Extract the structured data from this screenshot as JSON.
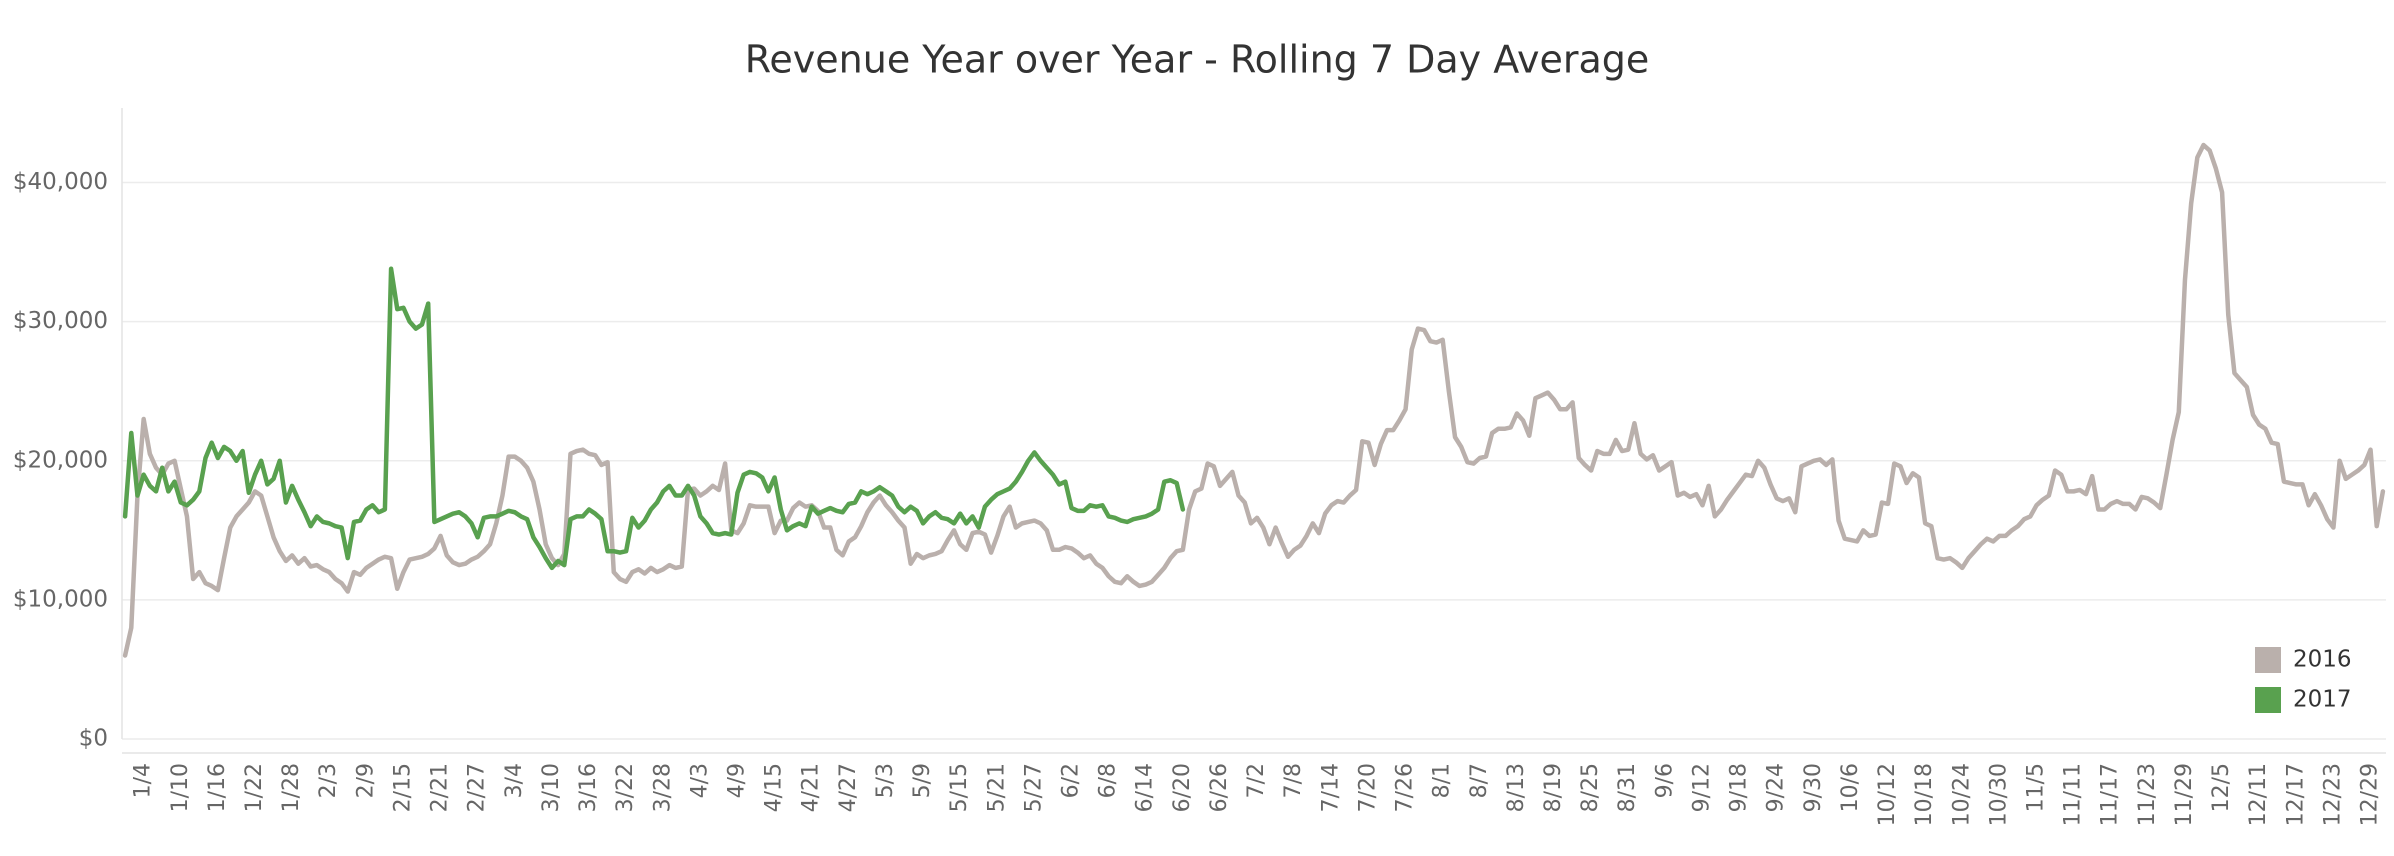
{
  "chart_data": {
    "type": "line",
    "title": "Revenue Year over Year - Rolling 7 Day Average",
    "categories": [
      null,
      null,
      null,
      "1/4",
      null,
      null,
      null,
      null,
      null,
      "1/10",
      null,
      null,
      null,
      null,
      null,
      "1/16",
      null,
      null,
      null,
      null,
      null,
      "1/22",
      null,
      null,
      null,
      null,
      null,
      "1/28",
      null,
      null,
      null,
      null,
      null,
      "2/3",
      null,
      null,
      null,
      null,
      null,
      "2/9",
      null,
      null,
      null,
      null,
      null,
      "2/15",
      null,
      null,
      null,
      null,
      null,
      "2/21",
      null,
      null,
      null,
      null,
      null,
      "2/27",
      null,
      null,
      null,
      null,
      null,
      "3/4",
      null,
      null,
      null,
      null,
      null,
      "3/10",
      null,
      null,
      null,
      null,
      null,
      "3/16",
      null,
      null,
      null,
      null,
      null,
      "3/22",
      null,
      null,
      null,
      null,
      null,
      "3/28",
      null,
      null,
      null,
      null,
      null,
      "4/3",
      null,
      null,
      null,
      null,
      null,
      "4/9",
      null,
      null,
      null,
      null,
      null,
      "4/15",
      null,
      null,
      null,
      null,
      null,
      "4/21",
      null,
      null,
      null,
      null,
      null,
      "4/27",
      null,
      null,
      null,
      null,
      null,
      "5/3",
      null,
      null,
      null,
      null,
      null,
      "5/9",
      null,
      null,
      null,
      null,
      null,
      "5/15",
      null,
      null,
      null,
      null,
      null,
      "5/21",
      null,
      null,
      null,
      null,
      null,
      "5/27",
      null,
      null,
      null,
      null,
      null,
      "6/2",
      null,
      null,
      null,
      null,
      null,
      "6/8",
      null,
      null,
      null,
      null,
      null,
      "6/14",
      null,
      null,
      null,
      null,
      null,
      "6/20",
      null,
      null,
      null,
      null,
      null,
      "6/26",
      null,
      null,
      null,
      null,
      null,
      "7/2",
      null,
      null,
      null,
      null,
      null,
      "7/8",
      null,
      null,
      null,
      null,
      null,
      "7/14",
      null,
      null,
      null,
      null,
      null,
      "7/20",
      null,
      null,
      null,
      null,
      null,
      "7/26",
      null,
      null,
      null,
      null,
      null,
      "8/1",
      null,
      null,
      null,
      null,
      null,
      "8/7",
      null,
      null,
      null,
      null,
      null,
      "8/13",
      null,
      null,
      null,
      null,
      null,
      "8/19",
      null,
      null,
      null,
      null,
      null,
      "8/25",
      null,
      null,
      null,
      null,
      null,
      "8/31",
      null,
      null,
      null,
      null,
      null,
      "9/6",
      null,
      null,
      null,
      null,
      null,
      "9/12",
      null,
      null,
      null,
      null,
      null,
      "9/18",
      null,
      null,
      null,
      null,
      null,
      "9/24",
      null,
      null,
      null,
      null,
      null,
      "9/30",
      null,
      null,
      null,
      null,
      null,
      "10/6",
      null,
      null,
      null,
      null,
      null,
      "10/12",
      null,
      null,
      null,
      null,
      null,
      "10/18",
      null,
      null,
      null,
      null,
      null,
      "10/24",
      null,
      null,
      null,
      null,
      null,
      "10/30",
      null,
      null,
      null,
      null,
      null,
      "11/5",
      null,
      null,
      null,
      null,
      null,
      "11/11",
      null,
      null,
      null,
      null,
      null,
      "11/17",
      null,
      null,
      null,
      null,
      null,
      "11/23",
      null,
      null,
      null,
      null,
      null,
      "11/29",
      null,
      null,
      null,
      null,
      null,
      "12/5",
      null,
      null,
      null,
      null,
      null,
      "12/11",
      null,
      null,
      null,
      null,
      null,
      "12/17",
      null,
      null,
      null,
      null,
      null,
      "12/23",
      null,
      null,
      null,
      null,
      null,
      "12/29",
      null,
      null
    ],
    "series": [
      {
        "name": "2016",
        "color": "#bab0ac",
        "values": [
          6000,
          8000,
          17500,
          23000,
          20500,
          19500,
          19000,
          19800,
          20000,
          18000,
          16000,
          11500,
          12000,
          11200,
          11000,
          10700,
          13000,
          15200,
          16000,
          16500,
          17000,
          17800,
          17500,
          16000,
          14500,
          13500,
          12800,
          13200,
          12600,
          13000,
          12400,
          12500,
          12200,
          12000,
          11500,
          11200,
          10600,
          12000,
          11800,
          12300,
          12600,
          12900,
          13100,
          13000,
          10800,
          12000,
          12900,
          13000,
          13100,
          13300,
          13700,
          14600,
          13200,
          12700,
          12500,
          12600,
          12900,
          13100,
          13500,
          14000,
          15500,
          17500,
          20300,
          20300,
          20000,
          19500,
          18500,
          16500,
          14000,
          13000,
          12500,
          13300,
          20500,
          20700,
          20800,
          20500,
          20400,
          19700,
          19900,
          12000,
          11500,
          11300,
          12000,
          12200,
          11900,
          12300,
          12000,
          12200,
          12500,
          12300,
          12400,
          17900,
          18000,
          17500,
          17800,
          18200,
          17900,
          19800,
          15000,
          14800,
          15500,
          16800,
          16700,
          16700,
          16700,
          14800,
          15700,
          15700,
          16600,
          17000,
          16700,
          16800,
          16400,
          15200,
          15200,
          13600,
          13200,
          14200,
          14500,
          15300,
          16300,
          17000,
          17500,
          16800,
          16300,
          15700,
          15200,
          12600,
          13300,
          13000,
          13200,
          13300,
          13500,
          14300,
          15000,
          14000,
          13600,
          14800,
          14900,
          14700,
          13400,
          14600,
          16000,
          16700,
          15200,
          15500,
          15600,
          15700,
          15500,
          15000,
          13600,
          13600,
          13800,
          13700,
          13400,
          13000,
          13200,
          12600,
          12300,
          11700,
          11300,
          11200,
          11700,
          11300,
          11000,
          11100,
          11300,
          11800,
          12300,
          13000,
          13500,
          13600,
          16500,
          17800,
          18000,
          19800,
          19600,
          18200,
          18700,
          19200,
          17500,
          17000,
          15500,
          15900,
          15200,
          14000,
          15200,
          14100,
          13100,
          13600,
          13900,
          14600,
          15500,
          14800,
          16200,
          16800,
          17100,
          17000,
          17500,
          17900,
          21400,
          21300,
          19700,
          21200,
          22200,
          22200,
          22900,
          23700,
          28000,
          29500,
          29400,
          28600,
          28500,
          28700,
          25000,
          21700,
          21000,
          19900,
          19800,
          20200,
          20300,
          22000,
          22300,
          22300,
          22400,
          23400,
          22900,
          21800,
          24500,
          24700,
          24900,
          24400,
          23700,
          23700,
          24200,
          20200,
          19700,
          19300,
          20700,
          20500,
          20500,
          21500,
          20700,
          20800,
          22700,
          20500,
          20100,
          20400,
          19300,
          19600,
          19900,
          17500,
          17700,
          17400,
          17600,
          16800,
          18200,
          16000,
          16500,
          17200,
          17800,
          18400,
          19000,
          18900,
          20000,
          19500,
          18300,
          17300,
          17100,
          17300,
          16300,
          19600,
          19800,
          20000,
          20100,
          19700,
          20100,
          15700,
          14400,
          14300,
          14200,
          15000,
          14600,
          14700,
          17000,
          16900,
          19800,
          19600,
          18400,
          19100,
          18800,
          15500,
          15300,
          13000,
          12900,
          13000,
          12700,
          12300,
          13000,
          13500,
          14000,
          14400,
          14200,
          14600,
          14600,
          15000,
          15300,
          15800,
          16000,
          16800,
          17200,
          17500,
          19300,
          19000,
          17800,
          17800,
          17900,
          17600,
          18900,
          16500,
          16500,
          16900,
          17100,
          16900,
          16900,
          16500,
          17400,
          17300,
          17000,
          16600,
          19000,
          21500,
          23500,
          33000,
          38500,
          41800,
          42700,
          42300,
          41000,
          39300,
          30500,
          26300,
          25800,
          25300,
          23300,
          22600,
          22300,
          21300,
          21200,
          18500,
          18400,
          18300,
          18300,
          16800,
          17600,
          16800,
          15800,
          15200,
          20000,
          18700,
          19000,
          19300,
          19700,
          20800,
          15300,
          17800
        ]
      },
      {
        "name": "2017",
        "color": "#59a14f",
        "values": [
          16000,
          22000,
          17500,
          19000,
          18200,
          17800,
          19500,
          17800,
          18500,
          17000,
          16800,
          17200,
          17800,
          20200,
          21300,
          20200,
          21000,
          20700,
          20000,
          20700,
          17700,
          19000,
          20000,
          18300,
          18700,
          20000,
          17000,
          18200,
          17200,
          16300,
          15300,
          16000,
          15600,
          15500,
          15300,
          15200,
          13000,
          15600,
          15700,
          16500,
          16800,
          16300,
          16500,
          33800,
          30900,
          31000,
          30000,
          29500,
          29800,
          31300,
          15600,
          15800,
          16000,
          16200,
          16300,
          16000,
          15500,
          14500,
          15900,
          16000,
          16000,
          16200,
          16400,
          16300,
          16000,
          15800,
          14500,
          13800,
          13000,
          12300,
          12800,
          12500,
          15800,
          16000,
          16000,
          16500,
          16200,
          15800,
          13500,
          13500,
          13400,
          13500,
          15900,
          15200,
          15700,
          16500,
          17000,
          17800,
          18200,
          17500,
          17500,
          18200,
          17500,
          16000,
          15500,
          14800,
          14700,
          14800,
          14700,
          17700,
          19000,
          19200,
          19100,
          18800,
          17800,
          18800,
          16500,
          15000,
          15300,
          15500,
          15300,
          16700,
          16200,
          16400,
          16600,
          16400,
          16300,
          16900,
          17000,
          17800,
          17600,
          17800,
          18100,
          17800,
          17500,
          16700,
          16300,
          16700,
          16400,
          15500,
          16000,
          16300,
          15900,
          15800,
          15500,
          16200,
          15500,
          16000,
          15200,
          16700,
          17200,
          17600,
          17800,
          18000,
          18500,
          19200,
          20000,
          20600,
          20000,
          19500,
          19000,
          18300,
          18500,
          16600,
          16400,
          16400,
          16800,
          16700,
          16800,
          16000,
          15900,
          15700,
          15600,
          15800,
          15900,
          16000,
          16200,
          16500,
          18500,
          18600,
          18400,
          16500,
          null,
          null,
          null,
          null,
          null,
          null,
          null,
          null,
          null,
          null,
          null,
          null,
          null,
          null,
          null,
          null,
          null,
          null,
          null,
          null,
          null,
          null,
          null,
          null,
          null,
          null,
          null,
          null,
          null,
          null,
          null,
          null,
          null,
          null,
          null,
          null,
          null,
          null,
          null,
          null,
          null,
          null,
          null,
          null,
          null,
          null,
          null,
          null,
          null,
          null,
          null,
          null,
          null,
          null,
          null,
          null,
          null,
          null,
          null,
          null,
          null,
          null,
          null,
          null,
          null,
          null,
          null,
          null,
          null,
          null,
          null,
          null,
          null,
          null,
          null,
          null,
          null,
          null,
          null,
          null,
          null,
          null,
          null,
          null,
          null,
          null,
          null,
          null,
          null,
          null,
          null,
          null,
          null,
          null,
          null,
          null,
          null,
          null,
          null,
          null,
          null,
          null,
          null,
          null,
          null,
          null,
          null,
          null,
          null,
          null,
          null,
          null,
          null,
          null,
          null,
          null,
          null,
          null,
          null,
          null,
          null,
          null,
          null,
          null,
          null,
          null,
          null,
          null,
          null,
          null,
          null,
          null,
          null,
          null,
          null,
          null,
          null,
          null,
          null,
          null,
          null,
          null,
          null,
          null,
          null,
          null,
          null,
          null,
          null,
          null,
          null,
          null,
          null,
          null,
          null,
          null,
          null,
          null,
          null,
          null,
          null,
          null,
          null,
          null,
          null,
          null,
          null,
          null,
          null,
          null,
          null,
          null,
          null,
          null,
          null,
          null,
          null,
          null,
          null,
          null,
          null,
          null,
          null,
          null,
          null,
          null,
          null,
          null,
          null,
          null,
          null,
          null,
          null,
          null
        ]
      }
    ],
    "ylim": [
      0,
      45000
    ],
    "yticks": [
      {
        "value": 0,
        "label": "$0"
      },
      {
        "value": 10000,
        "label": "$10,000"
      },
      {
        "value": 20000,
        "label": "$20,000"
      },
      {
        "value": 30000,
        "label": "$30,000"
      },
      {
        "value": 40000,
        "label": "$40,000"
      }
    ],
    "grid": true,
    "legend": "lower right"
  }
}
